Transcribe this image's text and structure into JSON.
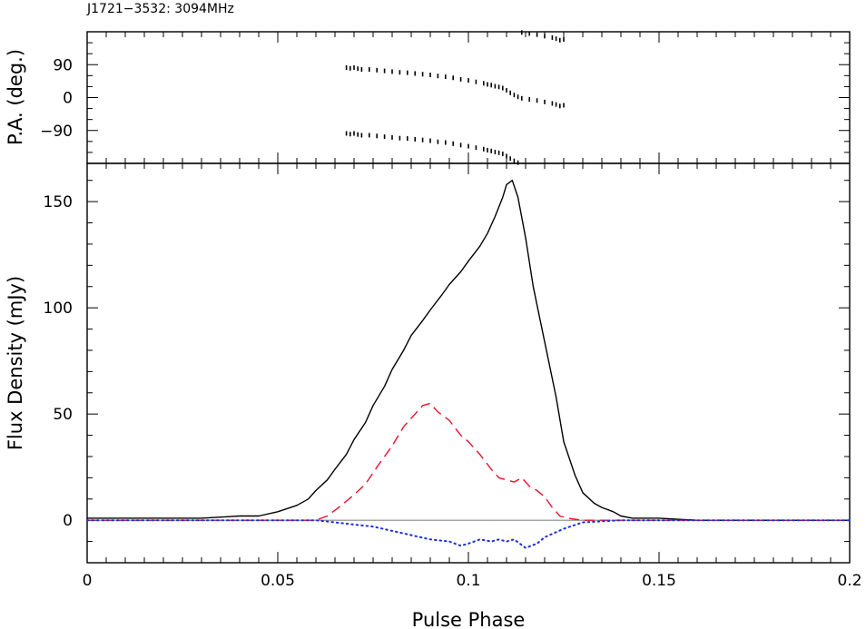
{
  "chart_data": {
    "title": "J1721−3532: 3094MHz",
    "xlabel": "Pulse Phase",
    "xlim": [
      0,
      0.2
    ],
    "x_ticks": [
      {
        "value": 0,
        "label": "0"
      },
      {
        "value": 0.05,
        "label": "0.05"
      },
      {
        "value": 0.1,
        "label": "0.1"
      },
      {
        "value": 0.15,
        "label": "0.15"
      },
      {
        "value": 0.2,
        "label": "0.2"
      }
    ],
    "panels": [
      {
        "type": "scatter",
        "ylabel": "P.A. (deg.)",
        "ylim": [
          -180,
          180
        ],
        "y_ticks": [
          {
            "value": 90,
            "label": "90"
          },
          {
            "value": 0,
            "label": "0"
          },
          {
            "value": -90,
            "label": "−90"
          }
        ],
        "series": [
          {
            "color": "#000000",
            "marker": "dot",
            "x": [
              0.068,
              0.069,
              0.07,
              0.071,
              0.072,
              0.074,
              0.076,
              0.078,
              0.08,
              0.082,
              0.084,
              0.086,
              0.088,
              0.09,
              0.092,
              0.094,
              0.096,
              0.098,
              0.1,
              0.102,
              0.104,
              0.105,
              0.106,
              0.107,
              0.108,
              0.109,
              0.11,
              0.111,
              0.112,
              0.113,
              0.114,
              0.116,
              0.118,
              0.12,
              0.122,
              0.123,
              0.124,
              0.125
            ],
            "y": [
              82,
              80,
              82,
              79,
              77,
              77,
              75,
              73,
              71,
              69,
              68,
              66,
              64,
              62,
              59,
              57,
              54,
              50,
              47,
              43,
              39,
              36,
              34,
              31,
              29,
              26,
              20,
              13,
              7,
              2,
              -2,
              -5,
              -8,
              -12,
              -16,
              -19,
              -23,
              -21
            ]
          }
        ]
      },
      {
        "type": "line",
        "ylabel": "Flux Density (mJy)",
        "ylim": [
          -20,
          168
        ],
        "baseline": 0,
        "y_ticks": [
          {
            "value": 150,
            "label": "150"
          },
          {
            "value": 100,
            "label": "100"
          },
          {
            "value": 50,
            "label": "50"
          },
          {
            "value": 0,
            "label": "0"
          }
        ],
        "series": [
          {
            "color": "#000000",
            "dash": "solid",
            "x": [
              0,
              0.01,
              0.02,
              0.03,
              0.04,
              0.045,
              0.05,
              0.055,
              0.058,
              0.06,
              0.063,
              0.065,
              0.068,
              0.07,
              0.073,
              0.075,
              0.078,
              0.08,
              0.083,
              0.085,
              0.088,
              0.09,
              0.093,
              0.095,
              0.098,
              0.1,
              0.103,
              0.105,
              0.107,
              0.109,
              0.11,
              0.1115,
              0.113,
              0.115,
              0.117,
              0.12,
              0.123,
              0.125,
              0.128,
              0.13,
              0.133,
              0.135,
              0.138,
              0.14,
              0.143,
              0.145,
              0.15,
              0.16,
              0.17,
              0.18,
              0.19,
              0.2
            ],
            "y": [
              1,
              1,
              1,
              1,
              2,
              2,
              4,
              7,
              10,
              14,
              19,
              24,
              31,
              38,
              46,
              54,
              63,
              71,
              80,
              87,
              94,
              99,
              106,
              111,
              117,
              122,
              129,
              135,
              143,
              152,
              158,
              160,
              152,
              133,
              110,
              84,
              58,
              37,
              21,
              13,
              8,
              6,
              4,
              2,
              1,
              1,
              1,
              0,
              0,
              0,
              0,
              0
            ]
          },
          {
            "color": "#e8112d",
            "dash": "dashed",
            "x": [
              0,
              0.02,
              0.04,
              0.05,
              0.06,
              0.063,
              0.066,
              0.07,
              0.073,
              0.076,
              0.08,
              0.083,
              0.086,
              0.088,
              0.09,
              0.092,
              0.095,
              0.098,
              0.1,
              0.103,
              0.106,
              0.108,
              0.11,
              0.112,
              0.114,
              0.116,
              0.118,
              0.12,
              0.122,
              0.124,
              0.126,
              0.13,
              0.14,
              0.15,
              0.17,
              0.2
            ],
            "y": [
              0,
              0,
              0,
              0,
              0,
              2,
              6,
              12,
              17,
              25,
              35,
              44,
              50,
              54,
              55,
              51,
              47,
              40,
              37,
              31,
              24,
              20,
              19,
              18,
              20,
              16,
              14,
              11,
              6,
              2,
              1,
              0,
              0,
              0,
              0,
              0
            ]
          },
          {
            "color": "#1c2fe0",
            "dash": "dotted",
            "x": [
              0,
              0.02,
              0.04,
              0.05,
              0.06,
              0.065,
              0.07,
              0.075,
              0.08,
              0.085,
              0.09,
              0.095,
              0.098,
              0.1,
              0.103,
              0.106,
              0.108,
              0.11,
              0.112,
              0.115,
              0.118,
              0.12,
              0.125,
              0.13,
              0.14,
              0.15,
              0.17,
              0.2
            ],
            "y": [
              0,
              0,
              0,
              0,
              0,
              -1,
              -2,
              -3,
              -5,
              -7,
              -9,
              -10,
              -12,
              -11,
              -9,
              -10,
              -9,
              -10,
              -9,
              -13,
              -11,
              -8,
              -4,
              -1,
              0,
              0,
              0,
              0
            ]
          }
        ]
      }
    ]
  }
}
